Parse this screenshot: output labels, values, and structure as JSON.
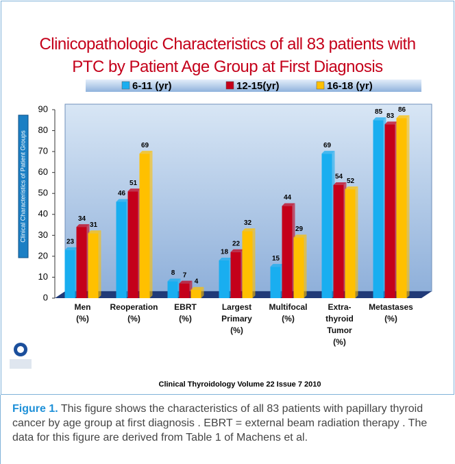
{
  "chart_data": {
    "type": "bar",
    "title": "Clinicopathologic Characteristics of all 83 patients with\nPTC by Patient Age Group at First Diagnosis",
    "y_label": "Clinical Characteristics of Patient Groups",
    "categories": [
      "Men\n(%)",
      "Reoperation\n(%)",
      "EBRT\n(%)",
      "Largest\nPrimary\n(%)",
      "Multifocal\n(%)",
      "Extra-\nthyroid\nTumor\n(%)",
      "Metastases\n(%)"
    ],
    "series": [
      {
        "name": "6-11 (yr)",
        "color": "#19aef0",
        "values": [
          23,
          46,
          8,
          18,
          15,
          69,
          85
        ]
      },
      {
        "name": "12-15(yr)",
        "color": "#c4001a",
        "values": [
          34,
          51,
          7,
          22,
          44,
          54,
          83
        ]
      },
      {
        "name": "16-18 (yr)",
        "color": "#ffc000",
        "values": [
          31,
          69,
          4,
          32,
          29,
          52,
          86
        ]
      }
    ],
    "ylim": [
      0,
      90
    ],
    "yticks": [
      0,
      10,
      20,
      30,
      40,
      50,
      60,
      70,
      80,
      90
    ],
    "source": "Clinical Thyroidology Volume 22 Issue 7 2010"
  },
  "caption": {
    "label": "Figure 1.",
    "text": " This figure shows the characteristics of all 83 patients with papillary thyroid cancer by age group at first diagnosis . EBRT = external beam radiation therapy . The data for this figure are derived from Table 1 of Machens et al."
  }
}
